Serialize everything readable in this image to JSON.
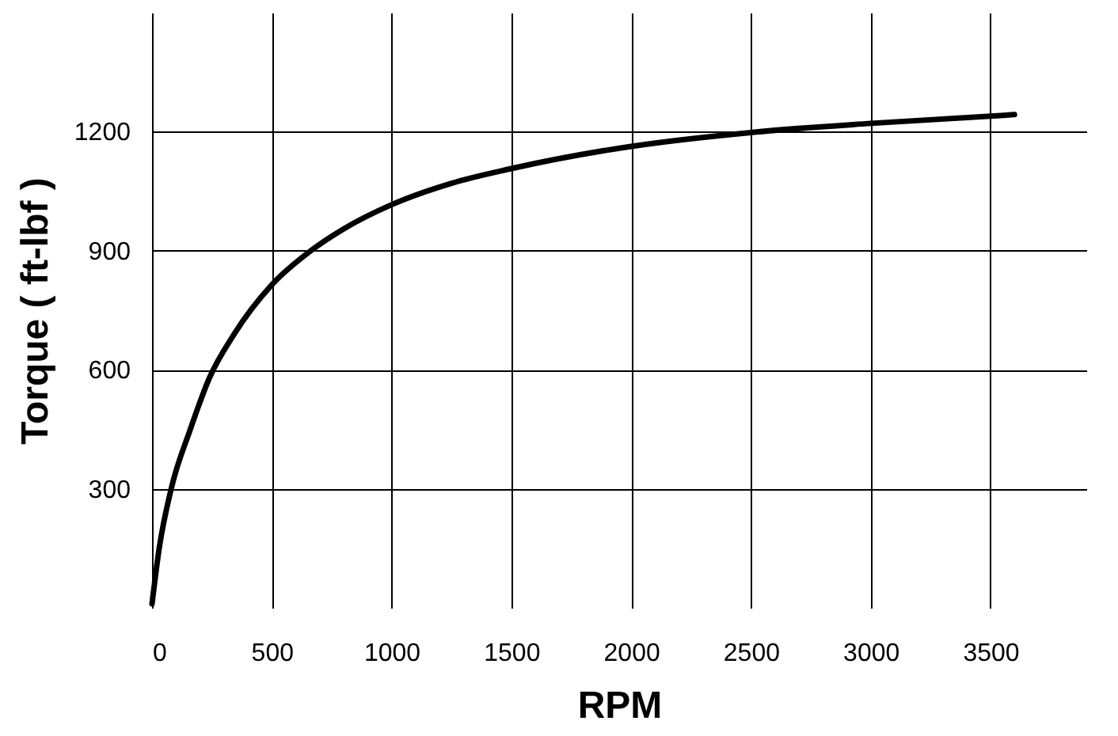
{
  "chart_data": {
    "type": "line",
    "xlabel": "RPM",
    "ylabel": "Torque ( ft-lbf )",
    "x": [
      0,
      30,
      80,
      160,
      240,
      343,
      500,
      663,
      800,
      1000,
      1250,
      1500,
      2000,
      2500,
      3000,
      3600
    ],
    "series": [
      {
        "color": "#000000",
        "values": [
          10,
          150,
          300,
          450,
          580,
          690,
          814,
          900,
          955,
          1016,
          1070,
          1107,
          1163,
          1198,
          1221,
          1243
        ]
      }
    ],
    "xlim": [
      0,
      3900
    ],
    "ylim": [
      0,
      1500
    ],
    "xticks": [
      0,
      500,
      1000,
      1500,
      2000,
      2500,
      3000,
      3500
    ],
    "yticks": [
      300,
      600,
      900,
      1200
    ],
    "grid": true,
    "marker": "none",
    "line_style": "solid"
  }
}
